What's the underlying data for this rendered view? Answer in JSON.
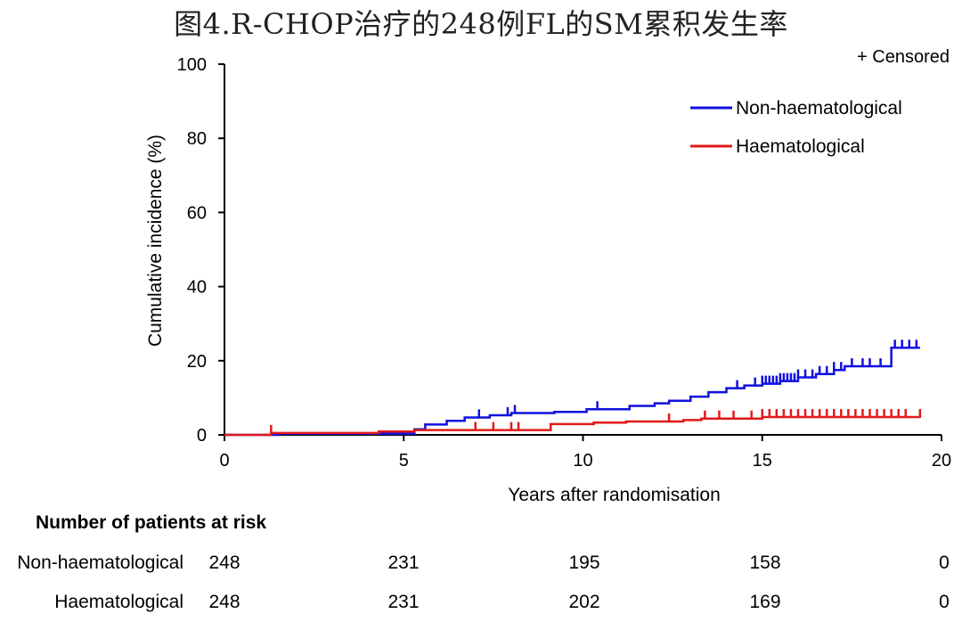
{
  "title": "图4.R-CHOP治疗的248例FL的SM累积发生率",
  "chart_data": {
    "type": "line",
    "xlabel": "Years after randomisation",
    "ylabel": "Cumulative incidence (%)",
    "xlim": [
      0,
      20
    ],
    "ylim": [
      0,
      100
    ],
    "x_ticks": [
      "0",
      "5",
      "10",
      "15",
      "20"
    ],
    "y_ticks": [
      "0",
      "20",
      "40",
      "60",
      "80",
      "100"
    ],
    "censor_note": "+ Censored",
    "legend_position": "top-right",
    "series": [
      {
        "name": "Non-haematological",
        "color": "#1010e0",
        "steps": [
          [
            0,
            0
          ],
          [
            1.5,
            0.3
          ],
          [
            5.3,
            1.5
          ],
          [
            5.6,
            2.8
          ],
          [
            6.2,
            3.8
          ],
          [
            6.7,
            4.7
          ],
          [
            7.4,
            5.3
          ],
          [
            8.0,
            5.9
          ],
          [
            9.2,
            6.2
          ],
          [
            10.1,
            6.9
          ],
          [
            11.3,
            7.8
          ],
          [
            12.0,
            8.5
          ],
          [
            12.4,
            9.2
          ],
          [
            13.0,
            10.3
          ],
          [
            13.5,
            11.5
          ],
          [
            14.0,
            12.6
          ],
          [
            14.5,
            13.3
          ],
          [
            15.0,
            13.8
          ],
          [
            15.5,
            14.5
          ],
          [
            16.0,
            15.5
          ],
          [
            16.5,
            16.4
          ],
          [
            17.0,
            17.5
          ],
          [
            17.3,
            18.5
          ],
          [
            18.6,
            23.5
          ],
          [
            19.4,
            23.5
          ]
        ],
        "censored": [
          7.1,
          7.9,
          8.1,
          10.4,
          14.3,
          14.8,
          15.0,
          15.1,
          15.2,
          15.3,
          15.4,
          15.5,
          15.6,
          15.7,
          15.8,
          15.9,
          16.0,
          16.2,
          16.4,
          16.6,
          16.8,
          17.0,
          17.2,
          17.5,
          17.8,
          18.0,
          18.3,
          18.7,
          18.9,
          19.1,
          19.3
        ]
      },
      {
        "name": "Haematological",
        "color": "#e01a1a",
        "steps": [
          [
            0,
            0
          ],
          [
            1.3,
            0.5
          ],
          [
            4.3,
            0.9
          ],
          [
            5.3,
            1.3
          ],
          [
            9.1,
            2.9
          ],
          [
            10.3,
            3.3
          ],
          [
            11.2,
            3.6
          ],
          [
            12.8,
            4.0
          ],
          [
            13.3,
            4.4
          ],
          [
            15.0,
            4.8
          ],
          [
            19.4,
            4.8
          ]
        ],
        "censored": [
          1.3,
          7.0,
          7.5,
          8.0,
          8.2,
          12.4,
          13.4,
          13.8,
          14.2,
          14.7,
          15.0,
          15.2,
          15.4,
          15.6,
          15.8,
          16.0,
          16.2,
          16.4,
          16.6,
          16.8,
          17.0,
          17.2,
          17.4,
          17.6,
          17.8,
          18.0,
          18.2,
          18.4,
          18.6,
          18.8,
          19.0,
          19.4
        ]
      }
    ]
  },
  "risk_table": {
    "heading": "Number of patients at risk",
    "rows": [
      {
        "label": "Non-haematological",
        "values": [
          "248",
          "231",
          "195",
          "158",
          "0"
        ]
      },
      {
        "label": "Haematological",
        "values": [
          "248",
          "231",
          "202",
          "169",
          "0"
        ]
      }
    ]
  }
}
